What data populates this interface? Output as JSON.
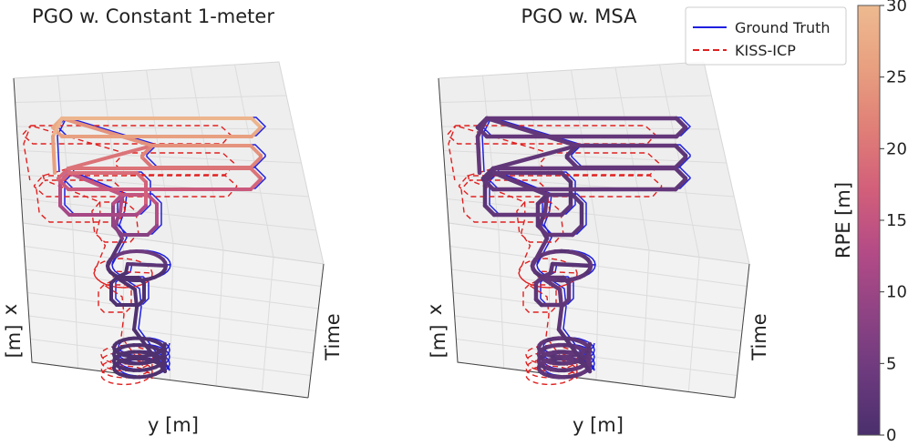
{
  "chart_data": [
    {
      "type": "3d-trajectory",
      "title": "PGO w. Constant 1-meter",
      "xlabel": "y [m]",
      "ylabel": "x\n[m]",
      "zlabel": "Time",
      "legend": null,
      "error_profile": "high"
    },
    {
      "type": "3d-trajectory",
      "title": "PGO w. MSA",
      "xlabel": "y [m]",
      "ylabel": "x\n[m]",
      "zlabel": "Time",
      "legend": {
        "placement": "top-right",
        "entries": [
          {
            "label": "Ground Truth",
            "color": "#1f1fe0",
            "style": "solid"
          },
          {
            "label": "KISS-ICP",
            "color": "#e02020",
            "style": "dashed"
          }
        ]
      },
      "error_profile": "low"
    }
  ],
  "colorbar": {
    "label": "RPE [m]",
    "range": [
      0,
      30
    ],
    "ticks": [
      "0",
      "5",
      "10",
      "15",
      "20",
      "25",
      "30"
    ],
    "colormap": "flare",
    "stops": [
      "#4a2f6d",
      "#6c3a7e",
      "#8f4384",
      "#b44b86",
      "#d25f7a",
      "#e07f77",
      "#e8a080",
      "#eeba90"
    ]
  },
  "labels": {
    "left_title": "PGO w. Constant 1-meter",
    "right_title": "PGO w. MSA",
    "y_axis": "y [m]",
    "x_axis_top": "x",
    "x_axis_bottom": "[m]",
    "time": "Time",
    "legend_gt": "Ground Truth",
    "legend_kiss": "KISS-ICP",
    "rpe": "RPE [m]",
    "cb_ticks": [
      "0",
      "5",
      "10",
      "15",
      "20",
      "25",
      "30"
    ]
  }
}
